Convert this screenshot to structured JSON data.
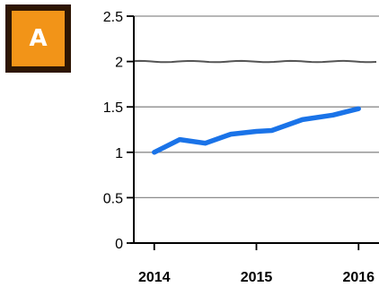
{
  "badge": {
    "letter": "A",
    "color": "#f29418",
    "border_color": "#2e1604"
  },
  "chart_data": {
    "type": "line",
    "title": "",
    "xlabel": "",
    "ylabel": "",
    "xlim": [
      2013.8,
      2016.2
    ],
    "ylim": [
      0,
      2.5
    ],
    "grid": true,
    "x_ticks": [
      2014,
      2015,
      2016
    ],
    "x_tick_labels": [
      "2014",
      "2015",
      "2016"
    ],
    "y_ticks": [
      0,
      0.5,
      1,
      1.5,
      2,
      2.5
    ],
    "y_tick_labels": [
      "0",
      "0.5",
      "1",
      "1.5",
      "2",
      "2.5"
    ],
    "reference_line": {
      "y": 2,
      "color": "#555555"
    },
    "series": [
      {
        "color": "#1a73e8",
        "x": [
          2014.0,
          2014.25,
          2014.5,
          2014.75,
          2015.0,
          2015.15,
          2015.45,
          2015.75,
          2016.0
        ],
        "y": [
          1.0,
          1.14,
          1.1,
          1.2,
          1.23,
          1.24,
          1.36,
          1.41,
          1.48
        ]
      }
    ]
  }
}
